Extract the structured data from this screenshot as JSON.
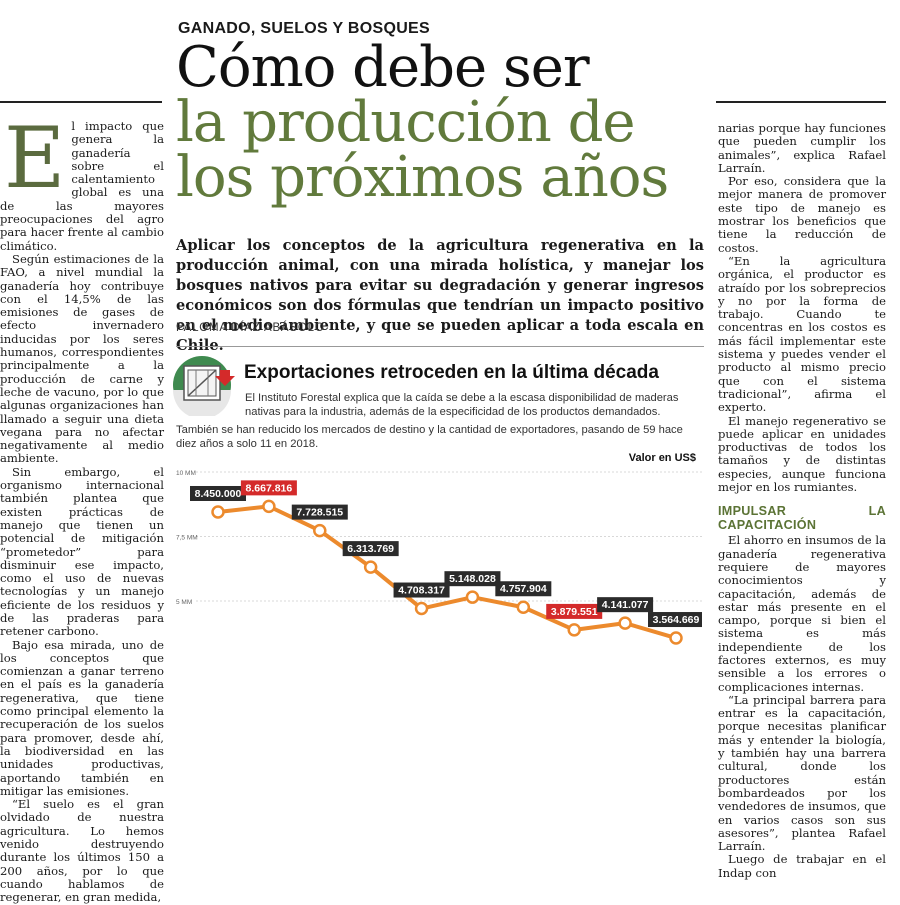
{
  "article": {
    "kicker": "GANADO, SUELOS Y BOSQUES",
    "title_line1": "Cómo debe ser",
    "title_line2": "la producción de",
    "title_line3": "los próximos años",
    "lead": "Aplicar los conceptos de la agricultura regenerativa en la producción animal, con una mirada holística, y manejar los bosques nativos para evitar su degradación y generar ingresos económicos son dos fórmulas que tendrían un impacto positivo en el medio ambiente, y que se pueden aplicar a toda escala en Chile.",
    "byline": "PALOMA DÍAZ ABÁSOLO",
    "dropcap": "E",
    "left_paragraphs": [
      "l impacto que genera la ganadería sobre el calentamiento global es una de las mayores preocupaciones del agro para hacer frente al cambio climático.",
      "Según estimaciones de la FAO, a nivel mundial la ganadería hoy contribuye con el 14,5% de las emisiones de gases de efecto invernadero inducidas por los seres humanos, correspondientes principalmente a la producción de carne y leche de vacuno, por lo que algunas organizaciones han llamado a seguir una dieta vegana para no afectar negativamente al medio ambiente.",
      "Sin embargo, el organismo internacional también plantea que existen prácticas de manejo que tienen un potencial de mitigación “prometedor” para disminuir ese impacto, como el uso de nuevas tecnologías y un manejo eficiente de los residuos y de las praderas para retener carbono.",
      "Bajo esa mirada, uno de los conceptos que comienzan a ganar terreno en el país es la ganadería regenerativa, que tiene como principal elemento la recuperación de los suelos para promover, desde ahí, la biodiversidad en las unidades productivas, aportando también en mitigar las emisiones.",
      "“El suelo es el gran olvidado de nuestra agricultura. Lo hemos venido destruyendo durante los últimos 150 a 200 años, por lo que cuando hablamos de regenerar, en gran medida,"
    ],
    "right_paragraphs": [
      "narias porque hay funciones que pueden cumplir los animales”, explica Rafael Larraín.",
      "Por eso, considera que la mejor manera de promover este tipo de manejo es mostrar los beneficios que tiene la reducción de costos.",
      "“En la agricultura orgánica, el productor es atraído por los sobreprecios y no por la forma de trabajo. Cuando te concentras en los costos es más fácil implementar este sistema y puedes vender el producto al mismo precio que con el sistema tradicional”, afirma el experto.",
      "El manejo regenerativo se puede aplicar en unidades productivas de todos los tamaños y de distintas especies, aunque funciona mejor en los rumiantes."
    ],
    "subhead": "IMPULSAR LA CAPACITACIÓN",
    "right_paragraphs_2": [
      "El ahorro en insumos de la ganadería regenerativa requiere de mayores conocimientos y capacitación, además de estar más presente en el campo, porque si bien el sistema es más independiente de los factores externos, es muy sensible a los errores o complicaciones internas.",
      "“La principal barrera para entrar es la capacitación, porque necesitas planificar más y entender la biología, y también hay una barrera cultural, donde los productores están bombardeados por los vendedores de insumos, que en varios casos son sus asesores”, plantea Rafael Larraín.",
      "Luego de trabajar en el Indap con"
    ]
  },
  "chart_data": {
    "type": "line",
    "title": "Exportaciones retroceden en la última década",
    "subtitle": "El Instituto Forestal explica que la caída se debe a la escasa disponibilidad de maderas nativas para la industria, además de la especificidad de los productos demandados.",
    "note": "También se han reducido los mercados de destino y la cantidad de exportadores, pasando de 59 hace diez años a solo 11 en 2018.",
    "unit_label": "Valor en US$",
    "y_ticks": [
      "10 MM",
      "7,5 MM",
      "5 MM"
    ],
    "y_tick_values": [
      10000000,
      7500000,
      5000000
    ],
    "ylim": [
      2500000,
      10000000
    ],
    "values": [
      8450000,
      8667816,
      7728515,
      6313769,
      4708317,
      5148028,
      4757904,
      3879551,
      4141077,
      3564669
    ],
    "labels": [
      "8.450.000",
      "8.667.816",
      "7.728.515",
      "6.313.769",
      "4.708.317",
      "5.148.028",
      "4.757.904",
      "3.879.551",
      "4.141.077",
      "3.564.669"
    ],
    "highlight_index": [
      1,
      7
    ],
    "colors": {
      "line": "#ec8a2d",
      "label_bg": "#2b2b2b",
      "highlight_bg": "#d42a2a",
      "label_text": "#ffffff"
    }
  },
  "icon": {
    "name": "wood-crate-icon"
  }
}
